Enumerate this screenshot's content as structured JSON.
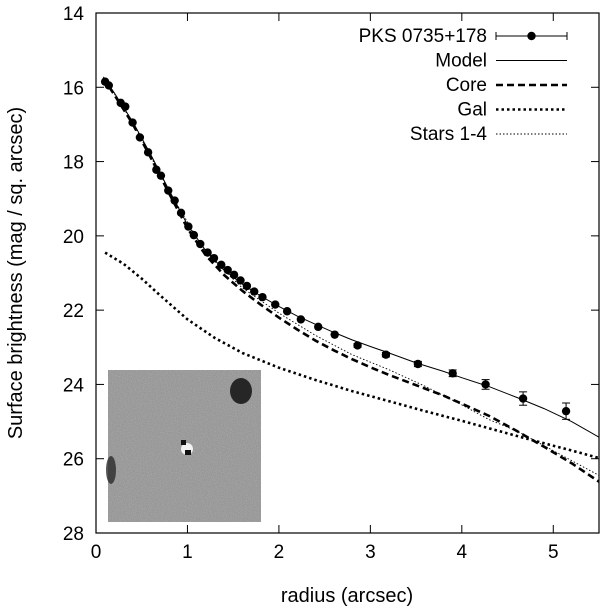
{
  "chart_data": {
    "type": "line",
    "title": "",
    "xlabel": "radius (arcsec)",
    "ylabel": "Surface brightness (mag / sq. arcsec)",
    "xlim": [
      0,
      5.5
    ],
    "ylim": [
      28,
      14
    ],
    "y_inverted": true,
    "grid": false,
    "legend_position": "top-right",
    "x_ticks": [
      0,
      1,
      2,
      3,
      4,
      5
    ],
    "y_ticks": [
      14,
      16,
      18,
      20,
      22,
      24,
      26,
      28
    ],
    "series": [
      {
        "name": "PKS 0735+178",
        "style": "points-with-errorbars",
        "x": [
          0.1,
          0.14,
          0.27,
          0.32,
          0.4,
          0.48,
          0.57,
          0.66,
          0.71,
          0.79,
          0.86,
          0.93,
          1.01,
          1.07,
          1.14,
          1.22,
          1.29,
          1.37,
          1.44,
          1.51,
          1.58,
          1.65,
          1.73,
          1.82,
          1.96,
          2.09,
          2.24,
          2.43,
          2.61,
          2.86,
          3.17,
          3.52,
          3.9,
          4.26,
          4.67,
          5.14
        ],
        "y": [
          15.85,
          15.95,
          16.42,
          16.52,
          16.95,
          17.35,
          17.75,
          18.22,
          18.38,
          18.78,
          19.05,
          19.38,
          19.75,
          19.98,
          20.22,
          20.45,
          20.6,
          20.78,
          20.92,
          21.05,
          21.2,
          21.35,
          21.5,
          21.65,
          21.85,
          22.03,
          22.25,
          22.45,
          22.66,
          22.95,
          23.2,
          23.45,
          23.7,
          24.0,
          24.38,
          24.72
        ],
        "yerr": [
          0.02,
          0.02,
          0.02,
          0.02,
          0.02,
          0.02,
          0.02,
          0.02,
          0.02,
          0.02,
          0.02,
          0.02,
          0.02,
          0.02,
          0.02,
          0.02,
          0.02,
          0.02,
          0.02,
          0.02,
          0.02,
          0.02,
          0.02,
          0.02,
          0.03,
          0.03,
          0.03,
          0.03,
          0.04,
          0.05,
          0.06,
          0.07,
          0.09,
          0.13,
          0.18,
          0.22
        ],
        "xerr": [
          0.0,
          0.0,
          0.0,
          0.0,
          0.0,
          0.0,
          0.0,
          0.0,
          0.0,
          0.0,
          0.0,
          0.0,
          0.0,
          0.0,
          0.0,
          0.0,
          0.0,
          0.0,
          0.0,
          0.0,
          0.0,
          0.0,
          0.0,
          0.0,
          0.0,
          0.0,
          0.0,
          0.0,
          0.0,
          0.0,
          0.0,
          0.0,
          0.0,
          0.0,
          0.0,
          0.0
        ]
      },
      {
        "name": "Model",
        "style": "solid-thin",
        "x": [
          0.08,
          0.2,
          0.4,
          0.6,
          0.8,
          1.0,
          1.2,
          1.4,
          1.6,
          1.8,
          2.0,
          2.2,
          2.4,
          2.6,
          2.8,
          3.0,
          3.2,
          3.5,
          3.8,
          4.0,
          4.3,
          4.6,
          4.9,
          5.2,
          5.5
        ],
        "y": [
          15.72,
          16.15,
          16.92,
          17.82,
          18.78,
          19.7,
          20.4,
          20.92,
          21.3,
          21.62,
          21.9,
          22.16,
          22.38,
          22.6,
          22.8,
          22.98,
          23.15,
          23.42,
          23.65,
          23.82,
          24.06,
          24.35,
          24.65,
          25.0,
          25.42
        ]
      },
      {
        "name": "Core",
        "style": "dashed-thick",
        "x": [
          0.08,
          0.2,
          0.4,
          0.6,
          0.8,
          1.0,
          1.2,
          1.4,
          1.6,
          1.8,
          2.0,
          2.2,
          2.4,
          2.6,
          2.8,
          3.0,
          3.2,
          3.5,
          3.8,
          4.0,
          4.3,
          4.6,
          4.9,
          5.2,
          5.5
        ],
        "y": [
          15.75,
          16.2,
          16.98,
          17.9,
          18.86,
          19.8,
          20.52,
          21.05,
          21.48,
          21.85,
          22.2,
          22.52,
          22.82,
          23.08,
          23.32,
          23.54,
          23.74,
          24.02,
          24.3,
          24.52,
          24.85,
          25.25,
          25.68,
          26.12,
          26.62
        ]
      },
      {
        "name": "Gal",
        "style": "dotted-thick",
        "x": [
          0.1,
          0.3,
          0.5,
          0.7,
          1.0,
          1.3,
          1.6,
          2.0,
          2.4,
          2.8,
          3.2,
          3.6,
          4.0,
          4.4,
          4.8,
          5.2,
          5.5
        ],
        "y": [
          20.45,
          20.75,
          21.15,
          21.6,
          22.25,
          22.75,
          23.15,
          23.55,
          23.88,
          24.18,
          24.45,
          24.72,
          24.98,
          25.25,
          25.52,
          25.78,
          25.98
        ]
      },
      {
        "name": "Stars 1-4",
        "style": "dotted-thin",
        "x": [
          0.1,
          0.4,
          0.8,
          1.2,
          1.6,
          2.0,
          2.4,
          2.8,
          3.2,
          3.6,
          4.0,
          4.3,
          4.6,
          4.9,
          5.2,
          5.5
        ],
        "y": [
          15.78,
          16.95,
          18.8,
          20.45,
          21.4,
          22.08,
          22.68,
          23.2,
          23.6,
          24.05,
          24.55,
          24.95,
          25.25,
          25.65,
          26.05,
          26.45
        ]
      }
    ],
    "inset": {
      "description": "grayscale residual image",
      "background": "#8a8a8a"
    }
  }
}
